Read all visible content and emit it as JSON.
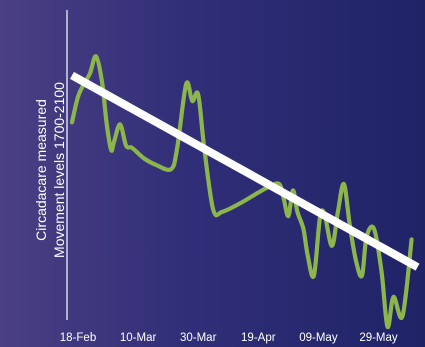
{
  "chart_data": {
    "type": "line",
    "title": "",
    "ylabel_lines": [
      "Circadacare measured",
      "Movement levels 1700-2100"
    ],
    "xlabel": "",
    "x_tick_labels": [
      "18-Feb",
      "10-Mar",
      "30-Mar",
      "19-Apr",
      "09-May",
      "29-May"
    ],
    "x_range_days": [
      0,
      112
    ],
    "y_axis_numeric_labels": "none",
    "grid": false,
    "legend": "none",
    "series": [
      {
        "style": "smoothed",
        "points": [
          {
            "day": -2,
            "value": 0.67
          },
          {
            "day": 0,
            "value": 0.79
          },
          {
            "day": 2,
            "value": 0.85
          },
          {
            "day": 4,
            "value": 0.9
          },
          {
            "day": 6,
            "value": 0.98
          },
          {
            "day": 8,
            "value": 0.86
          },
          {
            "day": 9.5,
            "value": 0.67
          },
          {
            "day": 11,
            "value": 0.54
          },
          {
            "day": 12,
            "value": 0.58
          },
          {
            "day": 14,
            "value": 0.66
          },
          {
            "day": 16,
            "value": 0.56
          },
          {
            "day": 18,
            "value": 0.55
          },
          {
            "day": 22,
            "value": 0.5
          },
          {
            "day": 26,
            "value": 0.47
          },
          {
            "day": 31,
            "value": 0.45
          },
          {
            "day": 33,
            "value": 0.55
          },
          {
            "day": 36,
            "value": 0.85
          },
          {
            "day": 38,
            "value": 0.77
          },
          {
            "day": 40,
            "value": 0.8
          },
          {
            "day": 42,
            "value": 0.55
          },
          {
            "day": 45,
            "value": 0.26
          },
          {
            "day": 48,
            "value": 0.25
          },
          {
            "day": 54,
            "value": 0.29
          },
          {
            "day": 60,
            "value": 0.34
          },
          {
            "day": 64,
            "value": 0.37
          },
          {
            "day": 67,
            "value": 0.38
          },
          {
            "day": 68.5,
            "value": 0.31
          },
          {
            "day": 70,
            "value": 0.23
          },
          {
            "day": 71.5,
            "value": 0.35
          },
          {
            "day": 73,
            "value": 0.25
          },
          {
            "day": 75,
            "value": 0.17
          },
          {
            "day": 76.5,
            "value": 0.04
          },
          {
            "day": 78.5,
            "value": -0.05
          },
          {
            "day": 80.5,
            "value": 0.22
          },
          {
            "day": 82,
            "value": 0.24
          },
          {
            "day": 84.5,
            "value": 0.09
          },
          {
            "day": 86.5,
            "value": 0.25
          },
          {
            "day": 88.5,
            "value": 0.38
          },
          {
            "day": 90.5,
            "value": 0.18
          },
          {
            "day": 92.5,
            "value": 0.02
          },
          {
            "day": 94.5,
            "value": -0.05
          },
          {
            "day": 96,
            "value": 0.13
          },
          {
            "day": 98.5,
            "value": 0.17
          },
          {
            "day": 101,
            "value": -0.03
          },
          {
            "day": 103,
            "value": -0.29
          },
          {
            "day": 105,
            "value": -0.15
          },
          {
            "day": 108,
            "value": -0.24
          },
          {
            "day": 111,
            "value": 0.12
          }
        ]
      }
    ],
    "trendline": {
      "start": {
        "day": -2,
        "value": 0.89
      },
      "end": {
        "day": 113,
        "value": -0.01
      }
    },
    "colors": {
      "series": "#8cb54c",
      "trendline": "#ffffff",
      "axes": "#ffffff",
      "text": "#ffffff",
      "background_left": "#4a3f83",
      "background_right": "#1f2366"
    }
  }
}
